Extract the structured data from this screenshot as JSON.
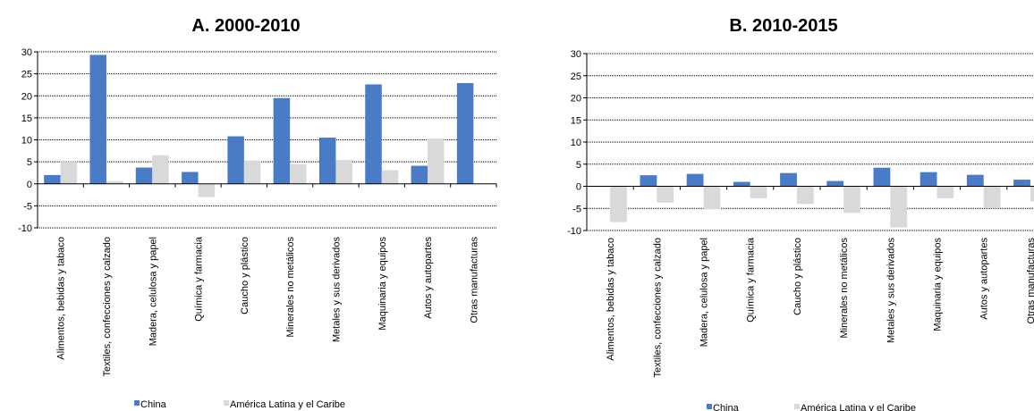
{
  "chart_data": [
    {
      "type": "bar",
      "title": "A. 2000-2010",
      "categories": [
        "Alimentos, bebidas y tabaco",
        "Textiles, confecciones y calzado",
        "Madera, celulosa y papel",
        "Química y farmacia",
        "Caucho y plástico",
        "Minerales no metálicos",
        "Metales y sus derivados",
        "Maquinaria y equipos",
        "Autos y autopartes",
        "Otras manufacturas"
      ],
      "series": [
        {
          "name": "China",
          "color": "#4a7bc6",
          "values": [
            2.0,
            29.3,
            3.7,
            2.7,
            10.8,
            19.5,
            10.5,
            22.6,
            4.1,
            22.9
          ]
        },
        {
          "name": "América Latina y el Caribe",
          "color": "#d9d9d9",
          "values": [
            5.0,
            0.6,
            6.5,
            -3.0,
            5.3,
            4.5,
            5.4,
            3.1,
            10.3,
            0.0
          ]
        }
      ],
      "yticks": [
        -10,
        -5,
        0,
        5,
        10,
        15,
        20,
        25,
        30
      ],
      "ylim": [
        -10,
        30
      ],
      "grid": true,
      "legend": "bottom"
    },
    {
      "type": "bar",
      "title": "B. 2010-2015",
      "categories": [
        "Alimentos, bebidas y tabaco",
        "Textiles, confecciones y calzado",
        "Madera, celulosa y papel",
        "Química y farmacia",
        "Caucho y plástico",
        "Minerales no metálicos",
        "Metales y sus derivados",
        "Maquinaria y equipos",
        "Autos y autopartes",
        "Otras manufacturas"
      ],
      "series": [
        {
          "name": "China",
          "color": "#4a7bc6",
          "values": [
            0.0,
            2.5,
            2.8,
            1.0,
            3.0,
            1.2,
            4.2,
            3.2,
            2.6,
            1.5
          ]
        },
        {
          "name": "América Latina y el Caribe",
          "color": "#d9d9d9",
          "values": [
            -8.1,
            -3.7,
            -5.2,
            -2.7,
            -4.0,
            -6.0,
            -9.3,
            -2.7,
            -4.9,
            -3.4
          ]
        }
      ],
      "yticks": [
        -10,
        -5,
        0,
        5,
        10,
        15,
        20,
        25,
        30
      ],
      "ylim": [
        -10,
        30
      ],
      "grid": true,
      "legend": "bottom"
    }
  ]
}
